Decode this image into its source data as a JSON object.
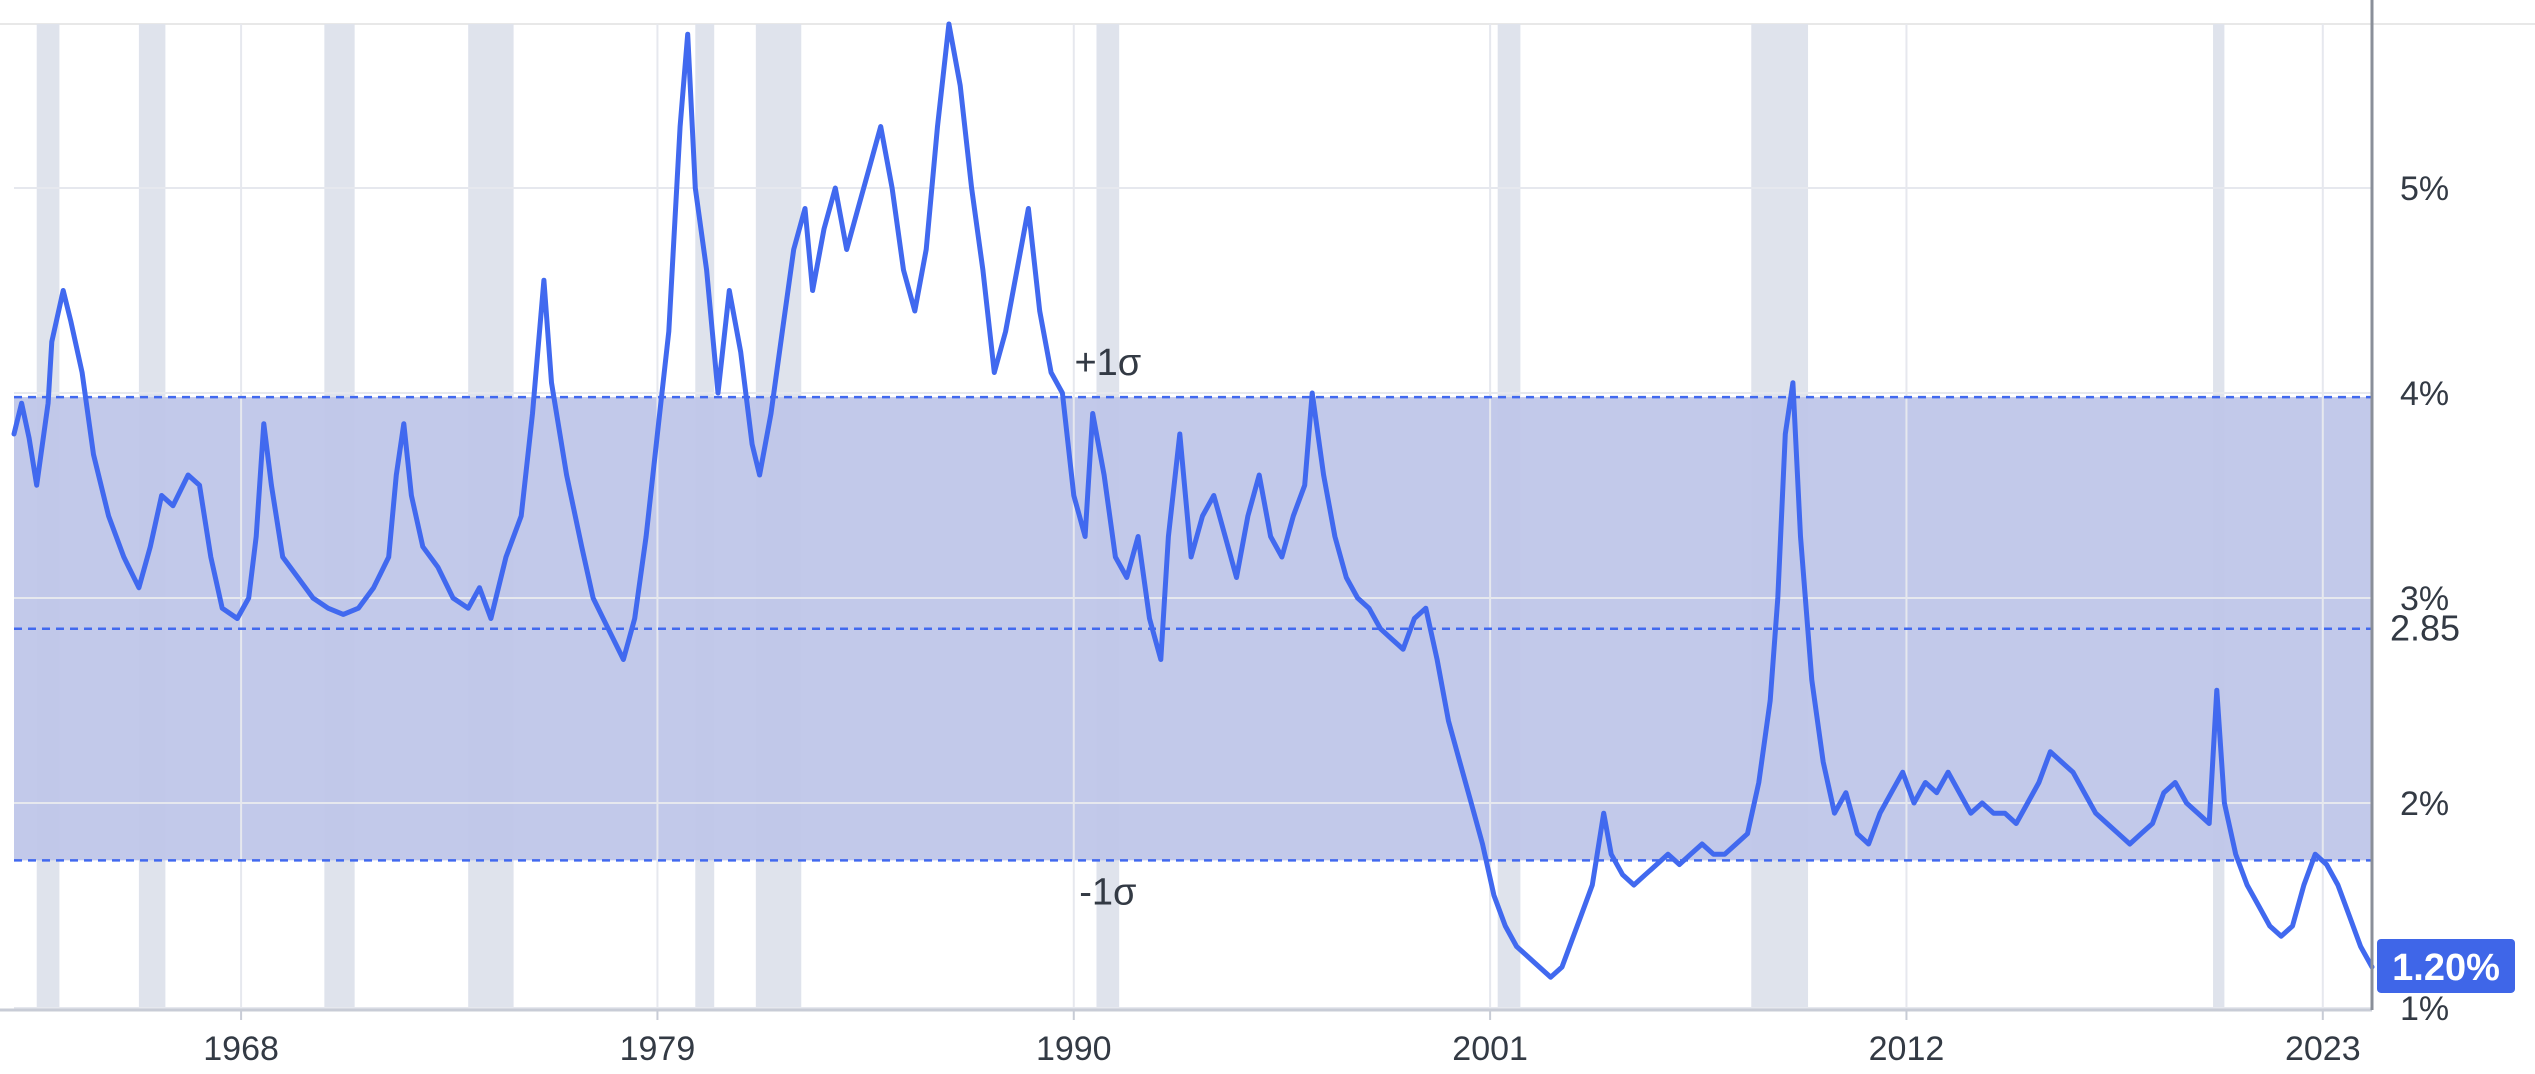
{
  "chart_data": {
    "type": "line",
    "title": "",
    "xlabel": "",
    "ylabel": "",
    "xlim": [
      1962.0,
      2024.3
    ],
    "ylim": [
      0.99,
      5.8
    ],
    "x_ticks": [
      {
        "value": 1968,
        "label": "1968"
      },
      {
        "value": 1979,
        "label": "1979"
      },
      {
        "value": 1990,
        "label": "1990"
      },
      {
        "value": 2001,
        "label": "2001"
      },
      {
        "value": 2012,
        "label": "2012"
      },
      {
        "value": 2023,
        "label": "2023"
      }
    ],
    "y_ticks": [
      {
        "value": 1,
        "label": "1%"
      },
      {
        "value": 2,
        "label": "2%"
      },
      {
        "value": 3,
        "label": "3%"
      },
      {
        "value": 4,
        "label": "4%"
      },
      {
        "value": 5,
        "label": "5%"
      }
    ],
    "grid": true,
    "mean": {
      "value": 2.85,
      "label": "2.85"
    },
    "band": {
      "upper": {
        "value": 3.98,
        "label": "+1σ"
      },
      "lower": {
        "value": 1.72,
        "label": "-1σ"
      }
    },
    "last_value": {
      "value": 1.2,
      "label": "1.20%"
    },
    "recessions": [
      [
        1962.6,
        1963.2
      ],
      [
        1965.3,
        1966.0
      ],
      [
        1970.2,
        1971.0
      ],
      [
        1974.0,
        1975.2
      ],
      [
        1980.0,
        1980.5
      ],
      [
        1981.6,
        1982.8
      ],
      [
        1990.6,
        1991.2
      ],
      [
        2001.2,
        2001.8
      ],
      [
        2007.9,
        2009.4
      ],
      [
        2020.1,
        2020.4
      ]
    ],
    "colors": {
      "line": "#4169ef",
      "band": "#bfc6e9",
      "recession": "#dfe3ec",
      "dashed": "#4169ef",
      "badge": "#3f66e8"
    },
    "series": [
      {
        "values": [
          [
            1962.0,
            3.8
          ],
          [
            1962.2,
            3.95
          ],
          [
            1962.4,
            3.78
          ],
          [
            1962.6,
            3.55
          ],
          [
            1962.9,
            3.95
          ],
          [
            1963.0,
            4.25
          ],
          [
            1963.3,
            4.5
          ],
          [
            1963.5,
            4.35
          ],
          [
            1963.8,
            4.1
          ],
          [
            1964.1,
            3.7
          ],
          [
            1964.5,
            3.4
          ],
          [
            1964.9,
            3.2
          ],
          [
            1965.3,
            3.05
          ],
          [
            1965.6,
            3.25
          ],
          [
            1965.9,
            3.5
          ],
          [
            1966.2,
            3.45
          ],
          [
            1966.6,
            3.6
          ],
          [
            1966.9,
            3.55
          ],
          [
            1967.2,
            3.2
          ],
          [
            1967.5,
            2.95
          ],
          [
            1967.9,
            2.9
          ],
          [
            1968.2,
            3.0
          ],
          [
            1968.4,
            3.3
          ],
          [
            1968.6,
            3.85
          ],
          [
            1968.8,
            3.55
          ],
          [
            1969.1,
            3.2
          ],
          [
            1969.5,
            3.1
          ],
          [
            1969.9,
            3.0
          ],
          [
            1970.3,
            2.95
          ],
          [
            1970.7,
            2.92
          ],
          [
            1971.1,
            2.95
          ],
          [
            1971.5,
            3.05
          ],
          [
            1971.9,
            3.2
          ],
          [
            1972.1,
            3.6
          ],
          [
            1972.3,
            3.85
          ],
          [
            1972.5,
            3.5
          ],
          [
            1972.8,
            3.25
          ],
          [
            1973.2,
            3.15
          ],
          [
            1973.6,
            3.0
          ],
          [
            1974.0,
            2.95
          ],
          [
            1974.3,
            3.05
          ],
          [
            1974.6,
            2.9
          ],
          [
            1975.0,
            3.2
          ],
          [
            1975.4,
            3.4
          ],
          [
            1975.7,
            3.9
          ],
          [
            1976.0,
            4.55
          ],
          [
            1976.2,
            4.05
          ],
          [
            1976.6,
            3.6
          ],
          [
            1977.0,
            3.25
          ],
          [
            1977.3,
            3.0
          ],
          [
            1977.7,
            2.85
          ],
          [
            1978.1,
            2.7
          ],
          [
            1978.4,
            2.9
          ],
          [
            1978.7,
            3.3
          ],
          [
            1979.0,
            3.8
          ],
          [
            1979.3,
            4.3
          ],
          [
            1979.6,
            5.3
          ],
          [
            1979.8,
            5.75
          ],
          [
            1980.0,
            5.0
          ],
          [
            1980.3,
            4.6
          ],
          [
            1980.6,
            4.0
          ],
          [
            1980.9,
            4.5
          ],
          [
            1981.2,
            4.2
          ],
          [
            1981.5,
            3.75
          ],
          [
            1981.7,
            3.6
          ],
          [
            1982.0,
            3.9
          ],
          [
            1982.3,
            4.3
          ],
          [
            1982.6,
            4.7
          ],
          [
            1982.9,
            4.9
          ],
          [
            1983.1,
            4.5
          ],
          [
            1983.4,
            4.8
          ],
          [
            1983.7,
            5.0
          ],
          [
            1984.0,
            4.7
          ],
          [
            1984.3,
            4.9
          ],
          [
            1984.6,
            5.1
          ],
          [
            1984.9,
            5.3
          ],
          [
            1985.2,
            5.0
          ],
          [
            1985.5,
            4.6
          ],
          [
            1985.8,
            4.4
          ],
          [
            1986.1,
            4.7
          ],
          [
            1986.4,
            5.3
          ],
          [
            1986.7,
            5.8
          ],
          [
            1987.0,
            5.5
          ],
          [
            1987.3,
            5.0
          ],
          [
            1987.6,
            4.6
          ],
          [
            1987.9,
            4.1
          ],
          [
            1988.2,
            4.3
          ],
          [
            1988.5,
            4.6
          ],
          [
            1988.8,
            4.9
          ],
          [
            1989.1,
            4.4
          ],
          [
            1989.4,
            4.1
          ],
          [
            1989.7,
            4.0
          ],
          [
            1990.0,
            3.5
          ],
          [
            1990.3,
            3.3
          ],
          [
            1990.5,
            3.9
          ],
          [
            1990.8,
            3.6
          ],
          [
            1991.1,
            3.2
          ],
          [
            1991.4,
            3.1
          ],
          [
            1991.7,
            3.3
          ],
          [
            1992.0,
            2.9
          ],
          [
            1992.3,
            2.7
          ],
          [
            1992.5,
            3.3
          ],
          [
            1992.8,
            3.8
          ],
          [
            1993.1,
            3.2
          ],
          [
            1993.4,
            3.4
          ],
          [
            1993.7,
            3.5
          ],
          [
            1994.0,
            3.3
          ],
          [
            1994.3,
            3.1
          ],
          [
            1994.6,
            3.4
          ],
          [
            1994.9,
            3.6
          ],
          [
            1995.2,
            3.3
          ],
          [
            1995.5,
            3.2
          ],
          [
            1995.8,
            3.4
          ],
          [
            1996.1,
            3.55
          ],
          [
            1996.3,
            4.0
          ],
          [
            1996.6,
            3.6
          ],
          [
            1996.9,
            3.3
          ],
          [
            1997.2,
            3.1
          ],
          [
            1997.5,
            3.0
          ],
          [
            1997.8,
            2.95
          ],
          [
            1998.1,
            2.85
          ],
          [
            1998.4,
            2.8
          ],
          [
            1998.7,
            2.75
          ],
          [
            1999.0,
            2.9
          ],
          [
            1999.3,
            2.95
          ],
          [
            1999.6,
            2.7
          ],
          [
            1999.9,
            2.4
          ],
          [
            2000.2,
            2.2
          ],
          [
            2000.5,
            2.0
          ],
          [
            2000.8,
            1.8
          ],
          [
            2001.1,
            1.55
          ],
          [
            2001.4,
            1.4
          ],
          [
            2001.7,
            1.3
          ],
          [
            2002.0,
            1.25
          ],
          [
            2002.3,
            1.2
          ],
          [
            2002.6,
            1.15
          ],
          [
            2002.9,
            1.2
          ],
          [
            2003.1,
            1.3
          ],
          [
            2003.4,
            1.45
          ],
          [
            2003.7,
            1.6
          ],
          [
            2004.0,
            1.95
          ],
          [
            2004.2,
            1.75
          ],
          [
            2004.5,
            1.65
          ],
          [
            2004.8,
            1.6
          ],
          [
            2005.1,
            1.65
          ],
          [
            2005.4,
            1.7
          ],
          [
            2005.7,
            1.75
          ],
          [
            2006.0,
            1.7
          ],
          [
            2006.3,
            1.75
          ],
          [
            2006.6,
            1.8
          ],
          [
            2006.9,
            1.75
          ],
          [
            2007.2,
            1.75
          ],
          [
            2007.5,
            1.8
          ],
          [
            2007.8,
            1.85
          ],
          [
            2008.1,
            2.1
          ],
          [
            2008.4,
            2.5
          ],
          [
            2008.6,
            3.0
          ],
          [
            2008.8,
            3.8
          ],
          [
            2009.0,
            4.05
          ],
          [
            2009.2,
            3.3
          ],
          [
            2009.5,
            2.6
          ],
          [
            2009.8,
            2.2
          ],
          [
            2010.1,
            1.95
          ],
          [
            2010.4,
            2.05
          ],
          [
            2010.7,
            1.85
          ],
          [
            2011.0,
            1.8
          ],
          [
            2011.3,
            1.95
          ],
          [
            2011.6,
            2.05
          ],
          [
            2011.9,
            2.15
          ],
          [
            2012.2,
            2.0
          ],
          [
            2012.5,
            2.1
          ],
          [
            2012.8,
            2.05
          ],
          [
            2013.1,
            2.15
          ],
          [
            2013.4,
            2.05
          ],
          [
            2013.7,
            1.95
          ],
          [
            2014.0,
            2.0
          ],
          [
            2014.3,
            1.95
          ],
          [
            2014.6,
            1.95
          ],
          [
            2014.9,
            1.9
          ],
          [
            2015.2,
            2.0
          ],
          [
            2015.5,
            2.1
          ],
          [
            2015.8,
            2.25
          ],
          [
            2016.1,
            2.2
          ],
          [
            2016.4,
            2.15
          ],
          [
            2016.7,
            2.05
          ],
          [
            2017.0,
            1.95
          ],
          [
            2017.3,
            1.9
          ],
          [
            2017.6,
            1.85
          ],
          [
            2017.9,
            1.8
          ],
          [
            2018.2,
            1.85
          ],
          [
            2018.5,
            1.9
          ],
          [
            2018.8,
            2.05
          ],
          [
            2019.1,
            2.1
          ],
          [
            2019.4,
            2.0
          ],
          [
            2019.7,
            1.95
          ],
          [
            2020.0,
            1.9
          ],
          [
            2020.2,
            2.55
          ],
          [
            2020.4,
            2.0
          ],
          [
            2020.7,
            1.75
          ],
          [
            2021.0,
            1.6
          ],
          [
            2021.3,
            1.5
          ],
          [
            2021.6,
            1.4
          ],
          [
            2021.9,
            1.35
          ],
          [
            2022.2,
            1.4
          ],
          [
            2022.5,
            1.6
          ],
          [
            2022.8,
            1.75
          ],
          [
            2023.1,
            1.7
          ],
          [
            2023.4,
            1.6
          ],
          [
            2023.7,
            1.45
          ],
          [
            2024.0,
            1.3
          ],
          [
            2024.3,
            1.2
          ]
        ]
      }
    ]
  }
}
